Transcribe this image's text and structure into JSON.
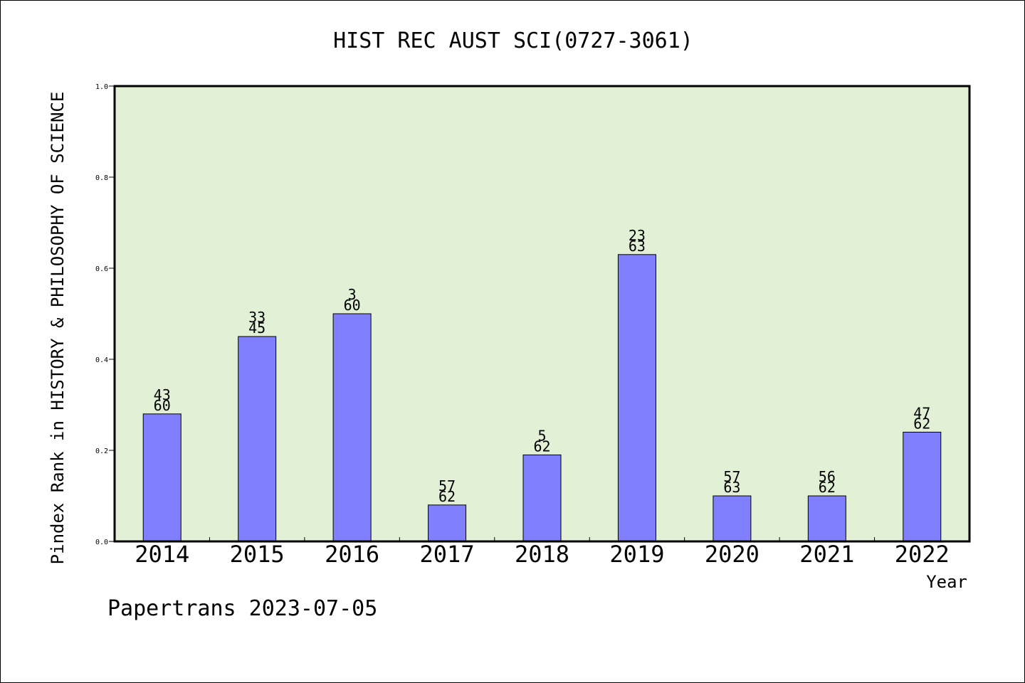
{
  "chart_data": {
    "type": "bar",
    "title": "HIST REC AUST SCI(0727-3061)",
    "xlabel": "Year",
    "ylabel": "Pindex Rank in HISTORY & PHILOSOPHY OF SCIENCE",
    "ylim": [
      0,
      1.0
    ],
    "yticks": [
      "0.0",
      "0.2",
      "0.4",
      "0.6",
      "0.8",
      "1.0"
    ],
    "ytick_values": [
      0,
      0.2,
      0.4,
      0.6,
      0.8,
      1.0
    ],
    "categories": [
      "2014",
      "2015",
      "2016",
      "2017",
      "2018",
      "2019",
      "2020",
      "2021",
      "2022"
    ],
    "values": [
      0.28,
      0.45,
      0.5,
      0.08,
      0.19,
      0.63,
      0.1,
      0.1,
      0.24
    ],
    "rank": [
      "43",
      "33",
      "3",
      "57",
      "5",
      "23",
      "57",
      "56",
      "47"
    ],
    "total": [
      "60",
      "45",
      "60",
      "62",
      "62",
      "63",
      "63",
      "62",
      "62"
    ],
    "grid": false,
    "colors": {
      "bar_fill": "#8080ff",
      "plot_background": "#e2f0d6",
      "axis": "#000000"
    }
  },
  "footer": {
    "source": "Papertrans 2023-07-05"
  }
}
